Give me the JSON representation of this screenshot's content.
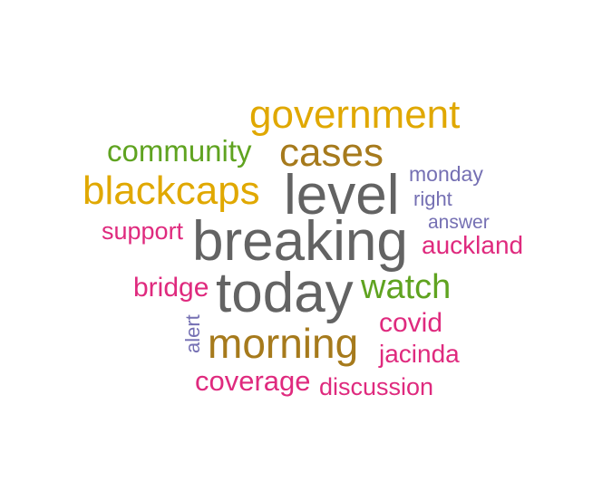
{
  "colors": {
    "gray": "#636363",
    "gold": "#e0a800",
    "green": "#5fa320",
    "brown": "#a67a1c",
    "magenta": "#df2a7e",
    "purple": "#7570b3"
  },
  "words": [
    {
      "text": "government",
      "color": "#e0a800"
    },
    {
      "text": "community",
      "color": "#5fa320"
    },
    {
      "text": "cases",
      "color": "#a67a1c"
    },
    {
      "text": "monday",
      "color": "#7570b3"
    },
    {
      "text": "blackcaps",
      "color": "#e0a800"
    },
    {
      "text": "level",
      "color": "#636363"
    },
    {
      "text": "right",
      "color": "#7570b3"
    },
    {
      "text": "answer",
      "color": "#7570b3"
    },
    {
      "text": "support",
      "color": "#df2a7e"
    },
    {
      "text": "breaking",
      "color": "#636363"
    },
    {
      "text": "auckland",
      "color": "#df2a7e"
    },
    {
      "text": "bridge",
      "color": "#df2a7e"
    },
    {
      "text": "today",
      "color": "#636363"
    },
    {
      "text": "watch",
      "color": "#5fa320"
    },
    {
      "text": "covid",
      "color": "#df2a7e"
    },
    {
      "text": "alert",
      "color": "#7570b3"
    },
    {
      "text": "morning",
      "color": "#a67a1c"
    },
    {
      "text": "jacinda",
      "color": "#df2a7e"
    },
    {
      "text": "coverage",
      "color": "#df2a7e"
    },
    {
      "text": "discussion",
      "color": "#df2a7e"
    }
  ]
}
